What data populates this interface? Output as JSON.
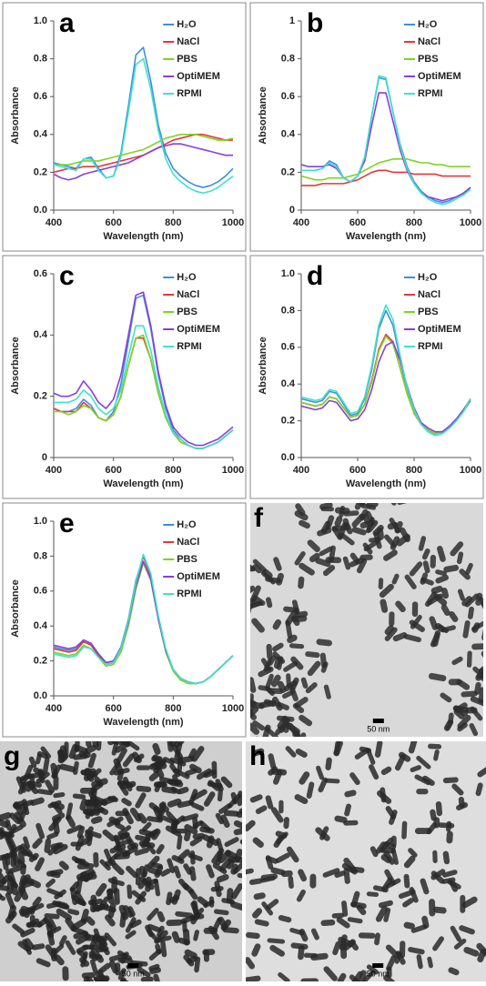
{
  "chart_data": [
    {
      "type": "line",
      "panel_label": "a",
      "xlabel": "Wavelength (nm)",
      "ylabel": "Absorbance",
      "x": [
        400,
        425,
        450,
        475,
        500,
        525,
        550,
        575,
        600,
        625,
        650,
        675,
        700,
        725,
        750,
        775,
        800,
        825,
        850,
        875,
        900,
        925,
        950,
        975,
        1000
      ],
      "xlim": [
        400,
        1000
      ],
      "xticks": [
        400,
        600,
        800,
        1000
      ],
      "ylim": [
        0,
        1
      ],
      "yticks": [
        {
          "value": 0,
          "label": "0.0"
        },
        0.2,
        0.4,
        0.6,
        0.8,
        {
          "value": 1,
          "label": "1.0"
        }
      ],
      "series": [
        {
          "name": "H₂O",
          "color": "#3d8fdc",
          "values": [
            0.25,
            0.24,
            0.23,
            0.22,
            0.27,
            0.28,
            0.22,
            0.17,
            0.18,
            0.3,
            0.55,
            0.82,
            0.86,
            0.68,
            0.45,
            0.3,
            0.22,
            0.18,
            0.15,
            0.13,
            0.12,
            0.13,
            0.15,
            0.18,
            0.22
          ]
        },
        {
          "name": "NaCl",
          "color": "#e0383e",
          "values": [
            0.2,
            0.21,
            0.22,
            0.22,
            0.23,
            0.23,
            0.23,
            0.24,
            0.25,
            0.26,
            0.27,
            0.28,
            0.29,
            0.31,
            0.33,
            0.35,
            0.37,
            0.38,
            0.39,
            0.4,
            0.4,
            0.39,
            0.38,
            0.37,
            0.37
          ]
        },
        {
          "name": "PBS",
          "color": "#7ed321",
          "values": [
            0.24,
            0.24,
            0.24,
            0.25,
            0.26,
            0.26,
            0.26,
            0.27,
            0.28,
            0.29,
            0.3,
            0.31,
            0.32,
            0.34,
            0.36,
            0.38,
            0.39,
            0.4,
            0.4,
            0.4,
            0.39,
            0.38,
            0.37,
            0.37,
            0.38
          ]
        },
        {
          "name": "OptiMEM",
          "color": "#8a3fd6",
          "values": [
            0.19,
            0.17,
            0.16,
            0.17,
            0.19,
            0.2,
            0.21,
            0.22,
            0.23,
            0.24,
            0.25,
            0.27,
            0.29,
            0.31,
            0.33,
            0.34,
            0.35,
            0.35,
            0.34,
            0.33,
            0.32,
            0.31,
            0.3,
            0.29,
            0.29
          ]
        },
        {
          "name": "RPMI",
          "color": "#3fe0d0",
          "values": [
            0.24,
            0.23,
            0.22,
            0.21,
            0.27,
            0.27,
            0.21,
            0.17,
            0.18,
            0.28,
            0.52,
            0.77,
            0.8,
            0.64,
            0.42,
            0.27,
            0.19,
            0.15,
            0.12,
            0.1,
            0.09,
            0.1,
            0.12,
            0.15,
            0.18
          ]
        }
      ]
    },
    {
      "type": "line",
      "panel_label": "b",
      "xlabel": "Wavelength (nm)",
      "ylabel": "Absorbance",
      "x": [
        400,
        425,
        450,
        475,
        500,
        525,
        550,
        575,
        600,
        625,
        650,
        675,
        700,
        725,
        750,
        775,
        800,
        825,
        850,
        875,
        900,
        925,
        950,
        975,
        1000
      ],
      "xlim": [
        400,
        1000
      ],
      "xticks": [
        400,
        600,
        800,
        1000
      ],
      "ylim": [
        0,
        1
      ],
      "yticks": [
        0,
        0.2,
        0.4,
        0.6,
        0.8,
        1
      ],
      "series": [
        {
          "name": "H₂O",
          "color": "#3d8fdc",
          "values": [
            0.21,
            0.21,
            0.21,
            0.22,
            0.26,
            0.24,
            0.17,
            0.15,
            0.18,
            0.28,
            0.5,
            0.7,
            0.69,
            0.52,
            0.35,
            0.23,
            0.15,
            0.1,
            0.07,
            0.05,
            0.04,
            0.05,
            0.07,
            0.09,
            0.12
          ]
        },
        {
          "name": "NaCl",
          "color": "#e0383e",
          "values": [
            0.13,
            0.13,
            0.13,
            0.14,
            0.14,
            0.14,
            0.14,
            0.15,
            0.16,
            0.18,
            0.2,
            0.21,
            0.21,
            0.2,
            0.2,
            0.2,
            0.19,
            0.19,
            0.19,
            0.19,
            0.18,
            0.18,
            0.18,
            0.18,
            0.18
          ]
        },
        {
          "name": "PBS",
          "color": "#7ed321",
          "values": [
            0.18,
            0.17,
            0.16,
            0.16,
            0.17,
            0.17,
            0.17,
            0.18,
            0.19,
            0.21,
            0.23,
            0.25,
            0.26,
            0.27,
            0.27,
            0.27,
            0.26,
            0.25,
            0.25,
            0.24,
            0.24,
            0.23,
            0.23,
            0.23,
            0.23
          ]
        },
        {
          "name": "OptiMEM",
          "color": "#8a3fd6",
          "values": [
            0.24,
            0.23,
            0.23,
            0.23,
            0.24,
            0.22,
            0.17,
            0.15,
            0.18,
            0.26,
            0.45,
            0.62,
            0.62,
            0.47,
            0.32,
            0.21,
            0.14,
            0.09,
            0.07,
            0.06,
            0.05,
            0.06,
            0.07,
            0.09,
            0.12
          ]
        },
        {
          "name": "RPMI",
          "color": "#3fe0d0",
          "values": [
            0.21,
            0.21,
            0.21,
            0.22,
            0.25,
            0.23,
            0.17,
            0.15,
            0.18,
            0.28,
            0.5,
            0.71,
            0.7,
            0.52,
            0.34,
            0.22,
            0.14,
            0.09,
            0.06,
            0.04,
            0.03,
            0.04,
            0.06,
            0.08,
            0.11
          ]
        }
      ]
    },
    {
      "type": "line",
      "panel_label": "c",
      "xlabel": "Wavelength (nm)",
      "ylabel": "Absorbance",
      "x": [
        400,
        425,
        450,
        475,
        500,
        525,
        550,
        575,
        600,
        625,
        650,
        675,
        700,
        725,
        750,
        775,
        800,
        825,
        850,
        875,
        900,
        925,
        950,
        975,
        1000
      ],
      "xlim": [
        400,
        1000
      ],
      "xticks": [
        400,
        600,
        800,
        1000
      ],
      "ylim": [
        0,
        0.6
      ],
      "yticks": [
        0,
        0.2,
        0.4,
        0.6
      ],
      "series": [
        {
          "name": "H₂O",
          "color": "#3d8fdc",
          "values": [
            0.16,
            0.15,
            0.15,
            0.16,
            0.19,
            0.17,
            0.13,
            0.12,
            0.15,
            0.24,
            0.38,
            0.52,
            0.53,
            0.42,
            0.27,
            0.16,
            0.09,
            0.06,
            0.04,
            0.03,
            0.03,
            0.04,
            0.05,
            0.07,
            0.09
          ]
        },
        {
          "name": "NaCl",
          "color": "#e0383e",
          "values": [
            0.16,
            0.15,
            0.15,
            0.15,
            0.18,
            0.16,
            0.13,
            0.12,
            0.14,
            0.2,
            0.3,
            0.39,
            0.39,
            0.32,
            0.21,
            0.13,
            0.08,
            0.05,
            0.04,
            0.03,
            0.03,
            0.04,
            0.05,
            0.07,
            0.09
          ]
        },
        {
          "name": "PBS",
          "color": "#7ed321",
          "values": [
            0.15,
            0.15,
            0.14,
            0.15,
            0.17,
            0.16,
            0.13,
            0.12,
            0.14,
            0.2,
            0.3,
            0.39,
            0.4,
            0.32,
            0.21,
            0.13,
            0.08,
            0.05,
            0.04,
            0.03,
            0.03,
            0.04,
            0.05,
            0.07,
            0.09
          ]
        },
        {
          "name": "OptiMEM",
          "color": "#8a3fd6",
          "values": [
            0.21,
            0.2,
            0.2,
            0.21,
            0.25,
            0.22,
            0.18,
            0.16,
            0.19,
            0.27,
            0.4,
            0.53,
            0.54,
            0.43,
            0.28,
            0.17,
            0.1,
            0.07,
            0.05,
            0.04,
            0.04,
            0.05,
            0.06,
            0.08,
            0.1
          ]
        },
        {
          "name": "RPMI",
          "color": "#3fe0d0",
          "values": [
            0.18,
            0.18,
            0.18,
            0.19,
            0.22,
            0.2,
            0.16,
            0.14,
            0.16,
            0.22,
            0.33,
            0.43,
            0.43,
            0.35,
            0.23,
            0.14,
            0.08,
            0.06,
            0.04,
            0.03,
            0.03,
            0.04,
            0.05,
            0.07,
            0.09
          ]
        }
      ]
    },
    {
      "type": "line",
      "panel_label": "d",
      "xlabel": "Wavelength (nm)",
      "ylabel": "Absorbance",
      "x": [
        400,
        425,
        450,
        475,
        500,
        525,
        550,
        575,
        600,
        625,
        650,
        675,
        700,
        725,
        750,
        775,
        800,
        825,
        850,
        875,
        900,
        925,
        950,
        975,
        1000
      ],
      "xlim": [
        400,
        1000
      ],
      "xticks": [
        400,
        600,
        800,
        1000
      ],
      "ylim": [
        0,
        1
      ],
      "yticks": [
        {
          "value": 0,
          "label": "0.0"
        },
        0.2,
        0.4,
        0.6,
        0.8,
        {
          "value": 1,
          "label": "1.0"
        }
      ],
      "series": [
        {
          "name": "H₂O",
          "color": "#3d8fdc",
          "values": [
            0.32,
            0.31,
            0.3,
            0.31,
            0.36,
            0.35,
            0.29,
            0.23,
            0.24,
            0.32,
            0.48,
            0.7,
            0.8,
            0.72,
            0.54,
            0.37,
            0.25,
            0.18,
            0.14,
            0.12,
            0.13,
            0.16,
            0.2,
            0.25,
            0.31
          ]
        },
        {
          "name": "NaCl",
          "color": "#e0383e",
          "values": [
            0.3,
            0.29,
            0.28,
            0.29,
            0.33,
            0.32,
            0.27,
            0.22,
            0.23,
            0.29,
            0.42,
            0.59,
            0.67,
            0.63,
            0.49,
            0.35,
            0.24,
            0.18,
            0.15,
            0.13,
            0.14,
            0.17,
            0.21,
            0.26,
            0.32
          ]
        },
        {
          "name": "PBS",
          "color": "#7ed321",
          "values": [
            0.3,
            0.29,
            0.28,
            0.29,
            0.33,
            0.32,
            0.27,
            0.22,
            0.23,
            0.29,
            0.41,
            0.58,
            0.66,
            0.62,
            0.49,
            0.35,
            0.24,
            0.18,
            0.15,
            0.13,
            0.14,
            0.17,
            0.21,
            0.26,
            0.32
          ]
        },
        {
          "name": "OptiMEM",
          "color": "#8a3fd6",
          "values": [
            0.28,
            0.27,
            0.26,
            0.27,
            0.31,
            0.3,
            0.25,
            0.2,
            0.21,
            0.26,
            0.37,
            0.52,
            0.61,
            0.63,
            0.53,
            0.39,
            0.27,
            0.19,
            0.16,
            0.14,
            0.14,
            0.17,
            0.21,
            0.26,
            0.31
          ]
        },
        {
          "name": "RPMI",
          "color": "#3fe0d0",
          "values": [
            0.33,
            0.32,
            0.31,
            0.32,
            0.37,
            0.36,
            0.3,
            0.24,
            0.25,
            0.33,
            0.5,
            0.72,
            0.83,
            0.75,
            0.56,
            0.38,
            0.26,
            0.18,
            0.14,
            0.12,
            0.13,
            0.16,
            0.2,
            0.25,
            0.32
          ]
        }
      ]
    },
    {
      "type": "line",
      "panel_label": "e",
      "xlabel": "Wavelength (nm)",
      "ylabel": "Absorbance",
      "x": [
        400,
        425,
        450,
        475,
        500,
        525,
        550,
        575,
        600,
        625,
        650,
        675,
        700,
        725,
        750,
        775,
        800,
        825,
        850,
        875,
        900,
        925,
        950,
        975,
        1000
      ],
      "xlim": [
        400,
        1000
      ],
      "xticks": [
        400,
        600,
        800,
        1000
      ],
      "ylim": [
        0,
        1
      ],
      "yticks": [
        {
          "value": 0,
          "label": "0.0"
        },
        0.2,
        0.4,
        0.6,
        0.8,
        {
          "value": 1,
          "label": "1.0"
        }
      ],
      "series": [
        {
          "name": "H₂O",
          "color": "#3d8fdc",
          "values": [
            0.28,
            0.27,
            0.26,
            0.27,
            0.32,
            0.3,
            0.24,
            0.19,
            0.2,
            0.28,
            0.44,
            0.66,
            0.8,
            0.69,
            0.45,
            0.26,
            0.15,
            0.1,
            0.08,
            0.07,
            0.08,
            0.11,
            0.15,
            0.19,
            0.23
          ]
        },
        {
          "name": "NaCl",
          "color": "#e0383e",
          "values": [
            0.27,
            0.26,
            0.25,
            0.26,
            0.31,
            0.29,
            0.23,
            0.18,
            0.19,
            0.27,
            0.43,
            0.65,
            0.8,
            0.69,
            0.45,
            0.26,
            0.15,
            0.1,
            0.08,
            0.07,
            0.08,
            0.11,
            0.15,
            0.19,
            0.23
          ]
        },
        {
          "name": "PBS",
          "color": "#7ed321",
          "values": [
            0.25,
            0.24,
            0.23,
            0.24,
            0.29,
            0.27,
            0.22,
            0.17,
            0.18,
            0.25,
            0.4,
            0.61,
            0.76,
            0.66,
            0.44,
            0.25,
            0.14,
            0.09,
            0.07,
            0.07,
            0.08,
            0.11,
            0.15,
            0.19,
            0.23
          ]
        },
        {
          "name": "OptiMEM",
          "color": "#8a3fd6",
          "values": [
            0.29,
            0.28,
            0.27,
            0.28,
            0.32,
            0.3,
            0.24,
            0.19,
            0.2,
            0.27,
            0.42,
            0.63,
            0.77,
            0.67,
            0.44,
            0.26,
            0.15,
            0.1,
            0.08,
            0.07,
            0.08,
            0.11,
            0.15,
            0.19,
            0.23
          ]
        },
        {
          "name": "RPMI",
          "color": "#3fe0d0",
          "values": [
            0.24,
            0.23,
            0.22,
            0.23,
            0.28,
            0.27,
            0.22,
            0.18,
            0.19,
            0.27,
            0.43,
            0.65,
            0.81,
            0.7,
            0.46,
            0.27,
            0.15,
            0.1,
            0.08,
            0.07,
            0.08,
            0.11,
            0.15,
            0.19,
            0.23
          ]
        }
      ]
    }
  ],
  "images": [
    {
      "panel_label": "f",
      "scale_bar": "50 nm"
    },
    {
      "panel_label": "g",
      "scale_bar": "50 nm"
    },
    {
      "panel_label": "h",
      "scale_bar": "50 nm"
    }
  ]
}
